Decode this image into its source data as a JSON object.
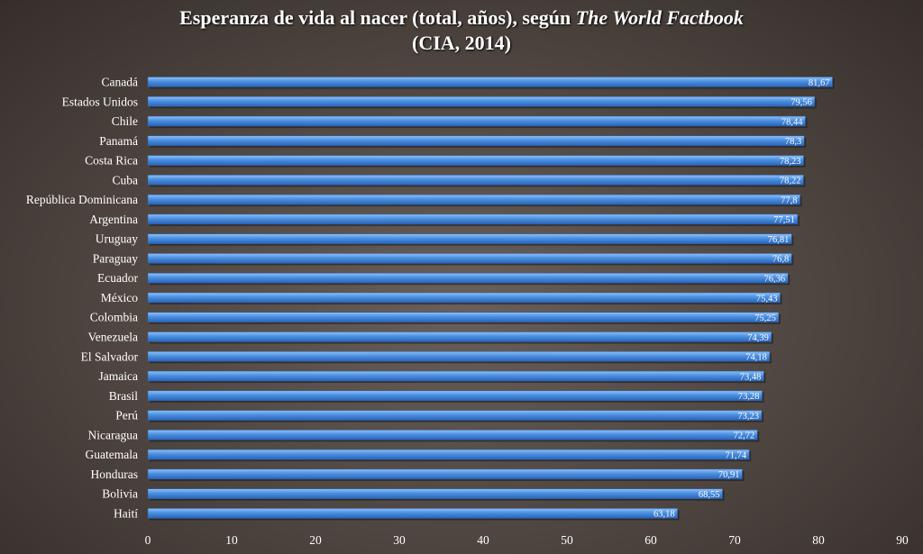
{
  "chart_data": {
    "type": "bar",
    "orientation": "horizontal",
    "title": {
      "main": "Esperanza de vida al nacer (total, años), según ",
      "italic": "The World Factbook",
      "line2": "(CIA, 2014)"
    },
    "categories": [
      "Canadá",
      "Estados Unidos",
      "Chile",
      "Panamá",
      "Costa Rica",
      "Cuba",
      "República Dominicana",
      "Argentina",
      "Uruguay",
      "Paraguay",
      "Ecuador",
      "México",
      "Colombia",
      "Venezuela",
      "El Salvador",
      "Jamaica",
      "Brasil",
      "Perú",
      "Nicaragua",
      "Guatemala",
      "Honduras",
      "Bolivia",
      "Haití"
    ],
    "values": [
      81.67,
      79.56,
      78.44,
      78.3,
      78.23,
      78.22,
      77.8,
      77.51,
      76.81,
      76.8,
      76.36,
      75.43,
      75.25,
      74.39,
      74.18,
      73.48,
      73.28,
      73.23,
      72.72,
      71.74,
      70.91,
      68.55,
      63.18
    ],
    "value_labels": [
      "81,67",
      "79,56",
      "78,44",
      "78,3",
      "78,23",
      "78,22",
      "77,8",
      "77,51",
      "76,81",
      "76,8",
      "76,36",
      "75,43",
      "75,25",
      "74,39",
      "74,18",
      "73,48",
      "73,28",
      "73,23",
      "72,72",
      "71,74",
      "70,91",
      "68,55",
      "63,18"
    ],
    "x_ticks": [
      "0",
      "10",
      "20",
      "30",
      "40",
      "50",
      "60",
      "70",
      "80",
      "90"
    ],
    "xlim": [
      0,
      90
    ],
    "xlabel": "",
    "ylabel": "",
    "grid": false,
    "bar_color": "#4a8fe0",
    "background_color": "#4e4540",
    "text_color": "#ffffff"
  }
}
